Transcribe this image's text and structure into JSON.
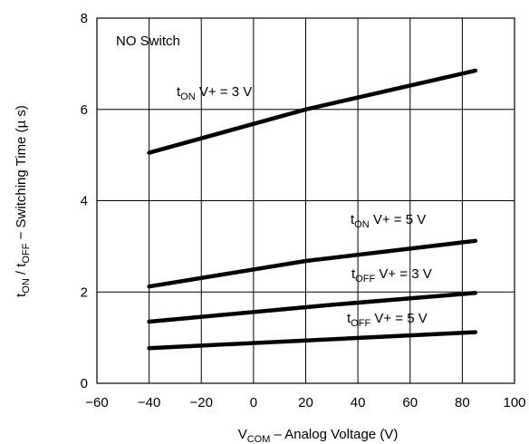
{
  "chart_data": {
    "type": "line",
    "annotation": "NO Switch",
    "xlabel": {
      "main": "V",
      "sub": "COM",
      "rest": " – Analog Voltage (V)"
    },
    "ylabel": {
      "p1": "t",
      "s1": "ON",
      "p2": " / t",
      "s2": "OFF",
      "p3": " − Switching Time (",
      "mu": "µ",
      "p4": " s)"
    },
    "xlim": [
      -60,
      100
    ],
    "ylim": [
      0,
      8
    ],
    "xticks": [
      -60,
      -40,
      -20,
      0,
      20,
      40,
      60,
      80,
      100
    ],
    "yticks": [
      0,
      2,
      4,
      6,
      8
    ],
    "grid": true,
    "line_color": "#000000",
    "series": [
      {
        "name": {
          "t": "t",
          "sub": "ON",
          "rest": " V+ = 3 V"
        },
        "points": [
          [
            -40,
            5.05
          ],
          [
            20,
            6.0
          ],
          [
            85,
            6.85
          ]
        ]
      },
      {
        "name": {
          "t": "t",
          "sub": "ON",
          "rest": " V+ = 5 V"
        },
        "points": [
          [
            -40,
            2.12
          ],
          [
            20,
            2.68
          ],
          [
            85,
            3.12
          ]
        ]
      },
      {
        "name": {
          "t": "t",
          "sub": "OFF",
          "rest": " V+ = 3 V"
        },
        "points": [
          [
            -40,
            1.35
          ],
          [
            30,
            1.72
          ],
          [
            85,
            1.98
          ]
        ]
      },
      {
        "name": {
          "t": "t",
          "sub": "OFF",
          "rest": " V+ = 5 V"
        },
        "points": [
          [
            -40,
            0.77
          ],
          [
            85,
            1.12
          ]
        ]
      }
    ]
  }
}
